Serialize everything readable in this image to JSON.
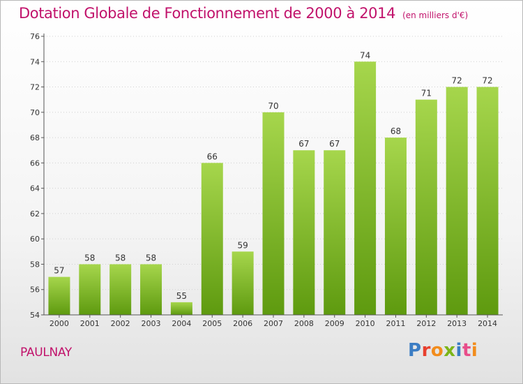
{
  "title": "Dotation Globale de Fonctionnement de 2000 à 2014",
  "subtitle": "(en milliers d'€)",
  "place": "PAULNAY",
  "logo": {
    "text": "Proxiti",
    "colors": [
      "#3b7dc4",
      "#e8402e",
      "#f28c1c",
      "#7cb518",
      "#3b7dc4",
      "#e84d8a",
      "#f28c1c"
    ]
  },
  "colors": {
    "accent": "#c1126b",
    "bar_light": "#a6d64c",
    "bar_dark": "#5e9a0f",
    "axis": "#555555",
    "grid": "#d0d0d0"
  },
  "chart_data": {
    "type": "bar",
    "categories": [
      "2000",
      "2001",
      "2002",
      "2003",
      "2004",
      "2005",
      "2006",
      "2007",
      "2008",
      "2009",
      "2010",
      "2011",
      "2012",
      "2013",
      "2014"
    ],
    "values": [
      57,
      58,
      58,
      58,
      55,
      66,
      59,
      70,
      67,
      67,
      74,
      68,
      71,
      72,
      72
    ],
    "data_labels": [
      "57",
      "58",
      "58",
      "58",
      "55",
      "66",
      "59",
      "70",
      "67",
      "67",
      "74",
      "68",
      "71",
      "72",
      "72"
    ],
    "yticks": [
      "54",
      "56",
      "58",
      "60",
      "62",
      "64",
      "66",
      "68",
      "70",
      "72",
      "74",
      "76"
    ],
    "ylim": [
      54,
      76
    ],
    "title": "Dotation Globale de Fonctionnement de 2000 à 2014",
    "subtitle": "(en milliers d'€)",
    "xlabel": "",
    "ylabel": "",
    "grid": true
  }
}
